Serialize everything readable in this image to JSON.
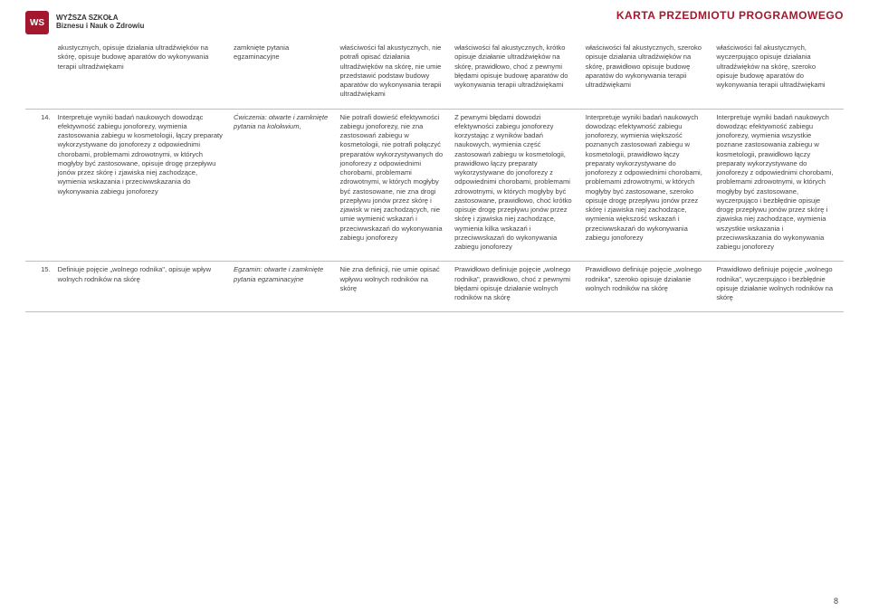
{
  "header": {
    "logo_letters": "WS",
    "school_name_line1": "WYŻSZA SZKOŁA",
    "school_name_line2": "Biznesu i Nauk o Zdrowiu",
    "page_title": "KARTA PRZEDMIOTU PROGRAMOWEGO"
  },
  "table": {
    "border_color": "#bfbfbf",
    "text_color": "#444444",
    "accent_color": "#a3182e",
    "font_size_pt": 7.6,
    "rows": [
      {
        "num": "",
        "c1": "akustycznych, opisuje działania ultradźwięków na skórę, opisuje budowę aparatów do wykonywania terapii ultradźwiękami",
        "c2": "zamknięte pytania egzaminacyjne",
        "c3": "właściwości fal akustycznych, nie potrafi opisać działania ultradźwięków na skórę, nie umie przedstawić podstaw budowy aparatów do wykonywania terapii ultradźwiękami",
        "c4": "właściwości fal akustycznych, krótko opisuje działanie ultradźwięków na skórę, prawidłowo, choć z pewnymi błędami opisuje budowę aparatów do wykonywania terapii ultradźwiękami",
        "c5": "właściwości fal akustycznych, szeroko opisuje działania ultradźwięków na skórę, prawidłowo opisuje budowę aparatów do wykonywania terapii ultradźwiękami",
        "c6": "właściwości fal akustycznych, wyczerpująco opisuje działania ultradźwięków na skórę, szeroko opisuje budowę aparatów do wykonywania terapii ultradźwiękami"
      },
      {
        "num": "14.",
        "c1": "Interpretuje wyniki badań naukowych dowodząc efektywność zabiegu jonoforezy, wymienia zastosowania zabiegu w kosmetologii, łączy preparaty wykorzystywane do jonoforezy z odpowiednimi chorobami, problemami zdrowotnymi, w których mogłyby być zastosowane, opisuje drogę przepływu jonów przez skórę i zjawiska niej zachodzące, wymienia wskazania i przeciwwskazania do wykonywania zabiegu jonoforezy",
        "c2": "Ćwiczenia: otwarte i zamknięte pytania na kolokwium,",
        "c2_italic": true,
        "c3": "Nie potrafi dowieść efektywności zabiegu jonoforezy, nie zna zastosowań zabiegu w kosmetologii, nie potrafi połączyć preparatów wykorzystywanych do jonoforezy z odpowiednimi chorobami, problemami zdrowotnymi, w których mogłyby być zastosowane, nie zna drogi przepływu jonów przez skórę i zjawisk w niej zachodzących, nie umie wymienić wskazań i przeciwwskazań do wykonywania zabiegu jonoforezy",
        "c4": "Z pewnymi błędami dowodzi efektywności zabiegu jonoforezy korzystając z wyników badań naukowych, wymienia część zastosowań zabiegu w kosmetologii, prawidłowo łączy preparaty wykorzystywane do jonoforezy z odpowiednimi chorobami, problemami zdrowotnymi, w których mogłyby być zastosowane, prawidłowo, choć krótko opisuje drogę przepływu jonów przez skórę i zjawiska niej zachodzące, wymienia kilka wskazań i przeciwwskazań do wykonywania zabiegu jonoforezy",
        "c5": "Interpretuje wyniki badań naukowych dowodząc efektywność zabiegu jonoforezy, wymienia większość poznanych zastosowań zabiegu w kosmetologii, prawidłowo łączy preparaty wykorzystywane do jonoforezy z odpowiednimi chorobami, problemami zdrowotnymi, w których mogłyby być zastosowane, szeroko opisuje drogę przepływu jonów przez skórę i zjawiska niej zachodzące, wymienia większość wskazań i przeciwwskazań do wykonywania zabiegu jonoforezy",
        "c6": "Interpretuje wyniki badań naukowych dowodząc efektywność zabiegu jonoforezy, wymienia wszystkie poznane zastosowania zabiegu w kosmetologii, prawidłowo łączy preparaty wykorzystywane do jonoforezy z odpowiednimi chorobami, problemami zdrowotnymi, w których mogłyby być zastosowane, wyczerpująco i bezbłędnie opisuje drogę przepływu jonów przez skórę i zjawiska niej zachodzące, wymienia wszystkie wskazania i przeciwwskazania do wykonywania zabiegu jonoforezy"
      },
      {
        "num": "15.",
        "c1": "Definiuje pojęcie „wolnego rodnika\", opisuje wpływ wolnych rodników na skórę",
        "c2": "Egzamin: otwarte i zamknięte pytania egzaminacyjne",
        "c2_italic": true,
        "c3": "Nie zna definicji, nie umie opisać wpływu wolnych rodników na skórę",
        "c4": "Prawidłowo definiuje pojęcie „wolnego rodnika\", prawidłowo, choć z pewnymi błędami opisuje działanie wolnych rodników na skórę",
        "c5": "Prawidłowo definiuje pojęcie „wolnego rodnika\", szeroko opisuje działanie wolnych rodników na skórę",
        "c6": "Prawidłowo definiuje pojęcie „wolnego rodnika\", wyczerpująco i bezbłędnie opisuje działanie wolnych rodników na skórę"
      }
    ]
  },
  "page_number": "8"
}
